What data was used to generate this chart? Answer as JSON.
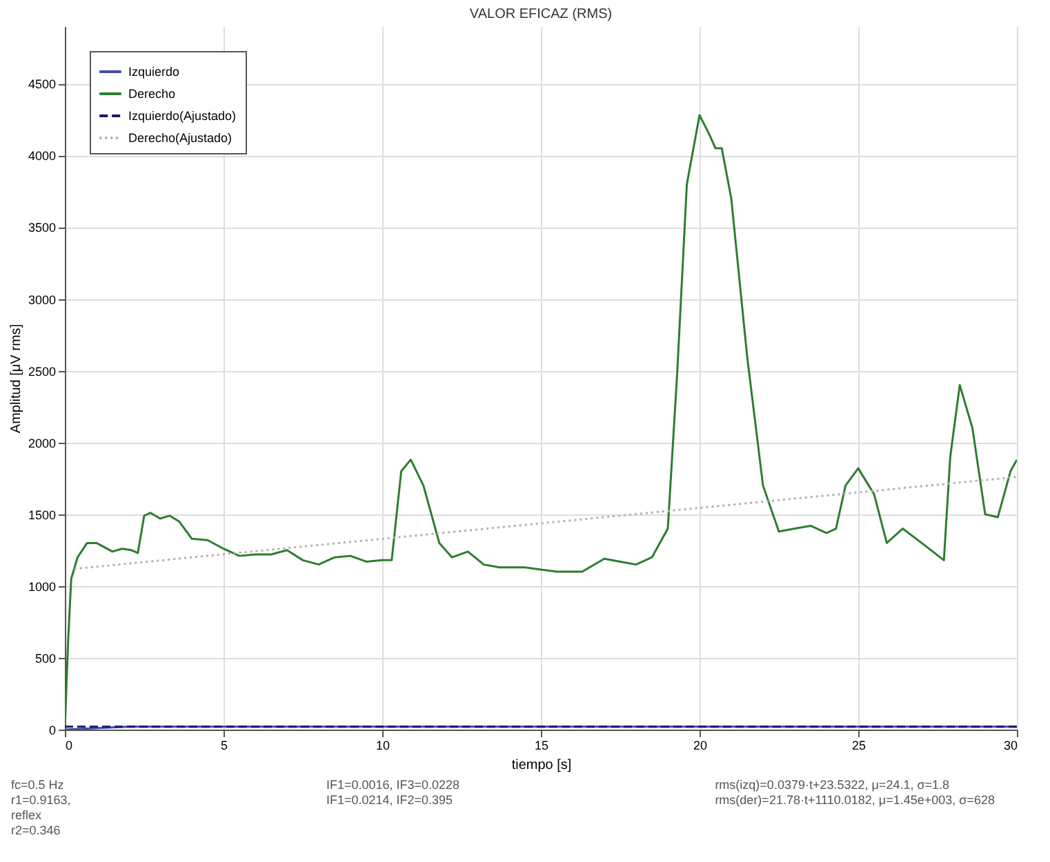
{
  "chart_data": {
    "type": "line",
    "title": "VALOR EFICAZ (RMS)",
    "xlabel": "tiempo [s]",
    "ylabel": "Amplitud [μV rms]",
    "xlim": [
      0,
      30
    ],
    "ylim": [
      0,
      4900
    ],
    "xticks": [
      0,
      5,
      10,
      15,
      20,
      25,
      30
    ],
    "yticks": [
      0,
      500,
      1000,
      1500,
      2000,
      2500,
      3000,
      3500,
      4000,
      4500
    ],
    "grid": true,
    "legend": "top left",
    "series": [
      {
        "name": "Izquierdo",
        "color": "#4a4aa8",
        "line_style": "solid",
        "x": [
          0,
          2,
          5,
          8,
          10,
          12,
          15,
          18,
          20,
          22,
          25,
          28,
          30
        ],
        "values": [
          0,
          20,
          20,
          20,
          20,
          20,
          20,
          20,
          20,
          20,
          20,
          20,
          20
        ]
      },
      {
        "name": "Derecho",
        "color": "#2e7d32",
        "line_style": "solid",
        "x": [
          0,
          0.1,
          0.2,
          0.4,
          0.7,
          1,
          1.5,
          1.8,
          2.1,
          2.3,
          2.5,
          2.7,
          3,
          3.3,
          3.6,
          4,
          4.5,
          5,
          5.5,
          6,
          6.5,
          7,
          7.5,
          8,
          8.5,
          9,
          9.5,
          10,
          10.3,
          10.6,
          10.9,
          11.3,
          11.8,
          12.2,
          12.7,
          13.2,
          13.7,
          14.5,
          15.5,
          16.3,
          17,
          17.5,
          18,
          18.5,
          19,
          19.3,
          19.6,
          20,
          20.3,
          20.5,
          20.7,
          21,
          21.5,
          22,
          22.5,
          23,
          23.5,
          24,
          24.3,
          24.6,
          25,
          25.5,
          25.9,
          26.4,
          27,
          27.7,
          27.9,
          28.2,
          28.6,
          29,
          29.4,
          29.8,
          30
        ],
        "values": [
          0,
          600,
          1050,
          1200,
          1300,
          1300,
          1240,
          1260,
          1250,
          1230,
          1490,
          1510,
          1470,
          1490,
          1450,
          1330,
          1320,
          1260,
          1210,
          1220,
          1220,
          1250,
          1180,
          1150,
          1200,
          1210,
          1170,
          1180,
          1180,
          1800,
          1880,
          1700,
          1300,
          1200,
          1240,
          1150,
          1130,
          1130,
          1100,
          1100,
          1190,
          1170,
          1150,
          1200,
          1400,
          2500,
          3800,
          4280,
          4150,
          4050,
          4050,
          3700,
          2600,
          1700,
          1380,
          1400,
          1420,
          1370,
          1400,
          1700,
          1820,
          1640,
          1300,
          1400,
          1300,
          1180,
          1900,
          2400,
          2100,
          1500,
          1480,
          1800,
          1880
        ]
      },
      {
        "name": "Izquierdo(Ajustado)",
        "color": "#1a1a6e",
        "line_style": "dashed",
        "x": [
          0,
          30
        ],
        "values": [
          20,
          20
        ]
      },
      {
        "name": "Derecho(Ajustado)",
        "color": "#b0b0b0",
        "line_style": "dotted",
        "x": [
          0.3,
          30
        ],
        "values": [
          1120,
          1760
        ]
      }
    ],
    "annotations": [
      "fc=0.5 Hz",
      "r1=0.9163,",
      "reflex",
      "r2=0.346",
      "IF1=0.0016, IF3=0.0228",
      "IF1=0.0214, IF2=0.395",
      "rms(izq)=0.0379·t+23.5322, μ=24.1, σ=1.8",
      "rms(der)=21.78·t+1110.0182, μ=1.45e+003, σ=628"
    ]
  }
}
